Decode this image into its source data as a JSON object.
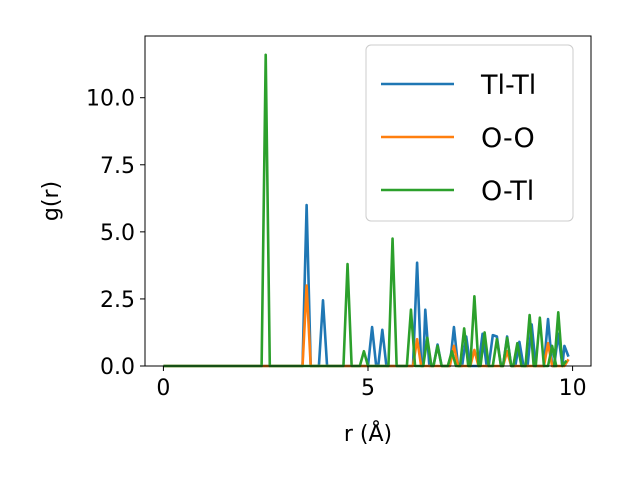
{
  "chart_data": {
    "type": "line",
    "xlabel": "r (Å)",
    "ylabel": "g(r)",
    "xlim": [
      -0.45,
      10.45
    ],
    "ylim": [
      0,
      12.3
    ],
    "xticks": [
      0,
      5,
      10
    ],
    "yticks": [
      0.0,
      2.5,
      5.0,
      7.5,
      10.0
    ],
    "xtick_labels": [
      "0",
      "5",
      "10"
    ],
    "ytick_labels": [
      "0.0",
      "2.5",
      "5.0",
      "7.5",
      "10.0"
    ],
    "grid": false,
    "legend_position": "top-right",
    "series": [
      {
        "name": "Tl-Tl",
        "color": "#1f77b4",
        "points": [
          [
            0,
            0
          ],
          [
            3.4,
            0
          ],
          [
            3.5,
            6.0
          ],
          [
            3.6,
            0
          ],
          [
            3.8,
            0
          ],
          [
            3.9,
            2.45
          ],
          [
            4.0,
            0
          ],
          [
            5.0,
            0
          ],
          [
            5.1,
            1.45
          ],
          [
            5.2,
            0
          ],
          [
            5.25,
            0
          ],
          [
            5.35,
            1.35
          ],
          [
            5.45,
            0
          ],
          [
            6.1,
            0
          ],
          [
            6.2,
            3.85
          ],
          [
            6.3,
            0
          ],
          [
            6.35,
            0
          ],
          [
            6.4,
            2.1
          ],
          [
            6.5,
            0
          ],
          [
            6.6,
            0
          ],
          [
            6.7,
            0.8
          ],
          [
            6.8,
            0
          ],
          [
            7.0,
            0
          ],
          [
            7.1,
            1.45
          ],
          [
            7.2,
            0
          ],
          [
            7.3,
            0
          ],
          [
            7.4,
            1.1
          ],
          [
            7.5,
            0
          ],
          [
            7.7,
            0
          ],
          [
            7.8,
            1.2
          ],
          [
            7.9,
            0
          ],
          [
            7.95,
            0
          ],
          [
            8.05,
            1.15
          ],
          [
            8.15,
            1.1
          ],
          [
            8.25,
            0
          ],
          [
            8.3,
            0
          ],
          [
            8.4,
            1.1
          ],
          [
            8.5,
            0
          ],
          [
            8.6,
            0
          ],
          [
            8.7,
            0.9
          ],
          [
            8.8,
            0
          ],
          [
            8.9,
            0
          ],
          [
            9.0,
            1.55
          ],
          [
            9.1,
            0
          ],
          [
            9.3,
            0
          ],
          [
            9.4,
            1.75
          ],
          [
            9.5,
            0
          ],
          [
            9.55,
            0
          ],
          [
            9.65,
            1.2
          ],
          [
            9.75,
            0
          ],
          [
            9.8,
            0.75
          ],
          [
            9.9,
            0.35
          ]
        ]
      },
      {
        "name": "O-O",
        "color": "#ff7f0e",
        "points": [
          [
            0,
            0
          ],
          [
            3.4,
            0
          ],
          [
            3.5,
            3.0
          ],
          [
            3.6,
            0
          ],
          [
            6.1,
            0
          ],
          [
            6.2,
            1.0
          ],
          [
            6.3,
            0
          ],
          [
            7.0,
            0
          ],
          [
            7.1,
            0.75
          ],
          [
            7.2,
            0
          ],
          [
            7.5,
            0
          ],
          [
            7.6,
            0.6
          ],
          [
            7.7,
            0
          ],
          [
            8.3,
            0
          ],
          [
            8.4,
            0.55
          ],
          [
            8.5,
            0
          ],
          [
            9.3,
            0
          ],
          [
            9.4,
            0.85
          ],
          [
            9.5,
            0
          ],
          [
            9.8,
            0
          ],
          [
            9.9,
            0.25
          ]
        ]
      },
      {
        "name": "O-Tl",
        "color": "#2ca02c",
        "points": [
          [
            0,
            0
          ],
          [
            2.4,
            0
          ],
          [
            2.5,
            11.6
          ],
          [
            2.6,
            0
          ],
          [
            4.4,
            0
          ],
          [
            4.5,
            3.8
          ],
          [
            4.6,
            0
          ],
          [
            4.8,
            0
          ],
          [
            4.9,
            0.55
          ],
          [
            5.0,
            0
          ],
          [
            5.5,
            0
          ],
          [
            5.6,
            4.75
          ],
          [
            5.7,
            0
          ],
          [
            5.95,
            0
          ],
          [
            6.05,
            2.1
          ],
          [
            6.15,
            0
          ],
          [
            6.35,
            0
          ],
          [
            6.45,
            1.05
          ],
          [
            6.55,
            0
          ],
          [
            6.6,
            0
          ],
          [
            6.7,
            0.75
          ],
          [
            6.8,
            0
          ],
          [
            6.95,
            0
          ],
          [
            7.05,
            0.55
          ],
          [
            7.15,
            0
          ],
          [
            7.25,
            0
          ],
          [
            7.35,
            1.4
          ],
          [
            7.45,
            0
          ],
          [
            7.5,
            0
          ],
          [
            7.6,
            2.6
          ],
          [
            7.7,
            0
          ],
          [
            7.75,
            0
          ],
          [
            7.85,
            1.25
          ],
          [
            7.95,
            0
          ],
          [
            8.05,
            0
          ],
          [
            8.15,
            1.0
          ],
          [
            8.25,
            0
          ],
          [
            8.3,
            0
          ],
          [
            8.4,
            1.05
          ],
          [
            8.5,
            0
          ],
          [
            8.55,
            0
          ],
          [
            8.65,
            0.85
          ],
          [
            8.75,
            0
          ],
          [
            8.85,
            0
          ],
          [
            8.95,
            1.9
          ],
          [
            9.05,
            0
          ],
          [
            9.1,
            0
          ],
          [
            9.2,
            1.8
          ],
          [
            9.3,
            0
          ],
          [
            9.4,
            0
          ],
          [
            9.5,
            0.75
          ],
          [
            9.6,
            0
          ],
          [
            9.55,
            0
          ],
          [
            9.65,
            2.0
          ],
          [
            9.75,
            0
          ],
          [
            9.85,
            0.2
          ]
        ]
      }
    ]
  }
}
